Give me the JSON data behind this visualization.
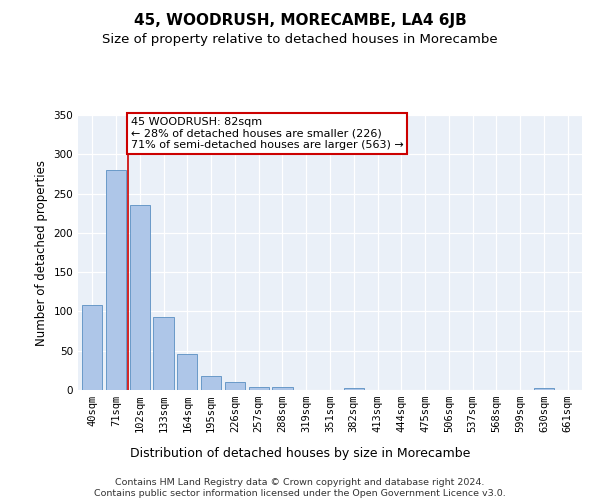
{
  "title": "45, WOODRUSH, MORECAMBE, LA4 6JB",
  "subtitle": "Size of property relative to detached houses in Morecambe",
  "xlabel": "Distribution of detached houses by size in Morecambe",
  "ylabel": "Number of detached properties",
  "categories": [
    "40sqm",
    "71sqm",
    "102sqm",
    "133sqm",
    "164sqm",
    "195sqm",
    "226sqm",
    "257sqm",
    "288sqm",
    "319sqm",
    "351sqm",
    "382sqm",
    "413sqm",
    "444sqm",
    "475sqm",
    "506sqm",
    "537sqm",
    "568sqm",
    "599sqm",
    "630sqm",
    "661sqm"
  ],
  "values": [
    108,
    280,
    235,
    93,
    46,
    18,
    10,
    4,
    4,
    0,
    0,
    3,
    0,
    0,
    0,
    0,
    0,
    0,
    0,
    3,
    0
  ],
  "bar_color": "#aec6e8",
  "bar_edge_color": "#5a8fc2",
  "vline_x": 1.5,
  "vline_color": "#cc0000",
  "annotation_text": "45 WOODRUSH: 82sqm\n← 28% of detached houses are smaller (226)\n71% of semi-detached houses are larger (563) →",
  "annotation_box_color": "#ffffff",
  "annotation_box_edge_color": "#cc0000",
  "ylim": [
    0,
    350
  ],
  "yticks": [
    0,
    50,
    100,
    150,
    200,
    250,
    300,
    350
  ],
  "background_color": "#eaf0f8",
  "footer_text": "Contains HM Land Registry data © Crown copyright and database right 2024.\nContains public sector information licensed under the Open Government Licence v3.0.",
  "title_fontsize": 11,
  "subtitle_fontsize": 9.5,
  "xlabel_fontsize": 9,
  "ylabel_fontsize": 8.5,
  "tick_fontsize": 7.5,
  "footer_fontsize": 6.8,
  "ann_fontsize": 8
}
